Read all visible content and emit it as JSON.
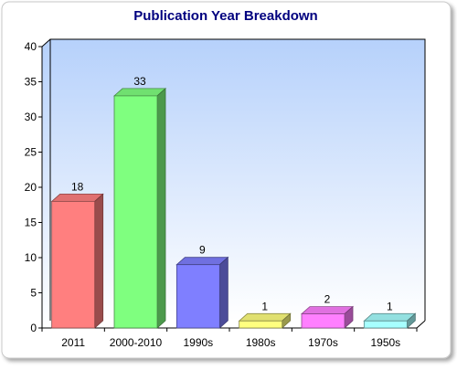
{
  "chart_data": {
    "type": "bar",
    "title": "Publication Year Breakdown",
    "xlabel": "",
    "ylabel": "",
    "categories": [
      "2011",
      "2000-2010",
      "1990s",
      "1980s",
      "1970s",
      "1950s"
    ],
    "values": [
      18,
      33,
      9,
      1,
      2,
      1
    ],
    "data_labels": [
      "18",
      "33",
      "9",
      "1",
      "2",
      "1"
    ],
    "ylim": [
      0,
      40
    ],
    "y_ticks": [
      "0",
      "5",
      "10",
      "15",
      "20",
      "25",
      "30",
      "35",
      "40"
    ],
    "grid": false,
    "legend": "none",
    "bar_colors": [
      "#ff7f7f",
      "#7fff7f",
      "#7f7fff",
      "#ffff7f",
      "#ff7fff",
      "#a7ffff"
    ],
    "title_color": "#00007f",
    "plot_background": [
      "#b6d1fb",
      "#ffffff"
    ]
  }
}
